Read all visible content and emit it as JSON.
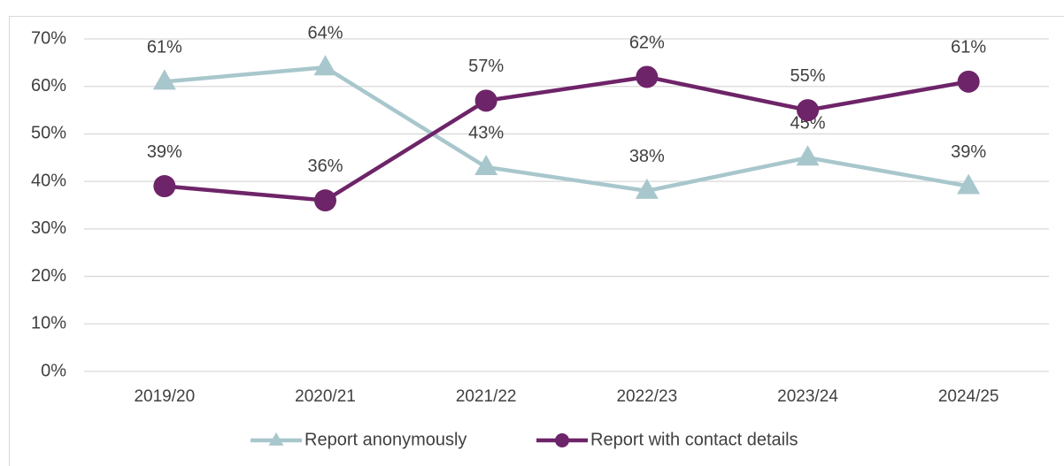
{
  "chart_data": {
    "type": "line",
    "categories": [
      "2019/20",
      "2020/21",
      "2021/22",
      "2022/23",
      "2023/24",
      "2024/25"
    ],
    "series": [
      {
        "name": "Report anonymously",
        "color": "#a8c7cc",
        "marker": "triangle",
        "values": [
          61,
          64,
          43,
          38,
          45,
          39
        ],
        "value_labels": [
          "61%",
          "64%",
          "43%",
          "38%",
          "45%",
          "39%"
        ]
      },
      {
        "name": "Report with contact details",
        "color": "#6e2468",
        "marker": "circle",
        "values": [
          39,
          36,
          57,
          62,
          55,
          61
        ],
        "value_labels": [
          "39%",
          "36%",
          "57%",
          "62%",
          "55%",
          "61%"
        ]
      }
    ],
    "ylim": [
      0,
      70
    ],
    "yticks": [
      {
        "value": 0,
        "label": "0%"
      },
      {
        "value": 10,
        "label": "10%"
      },
      {
        "value": 20,
        "label": "20%"
      },
      {
        "value": 30,
        "label": "30%"
      },
      {
        "value": 40,
        "label": "40%"
      },
      {
        "value": 50,
        "label": "50%"
      },
      {
        "value": 60,
        "label": "60%"
      },
      {
        "value": 70,
        "label": "70%"
      }
    ],
    "grid": true,
    "legend": "bottom"
  }
}
